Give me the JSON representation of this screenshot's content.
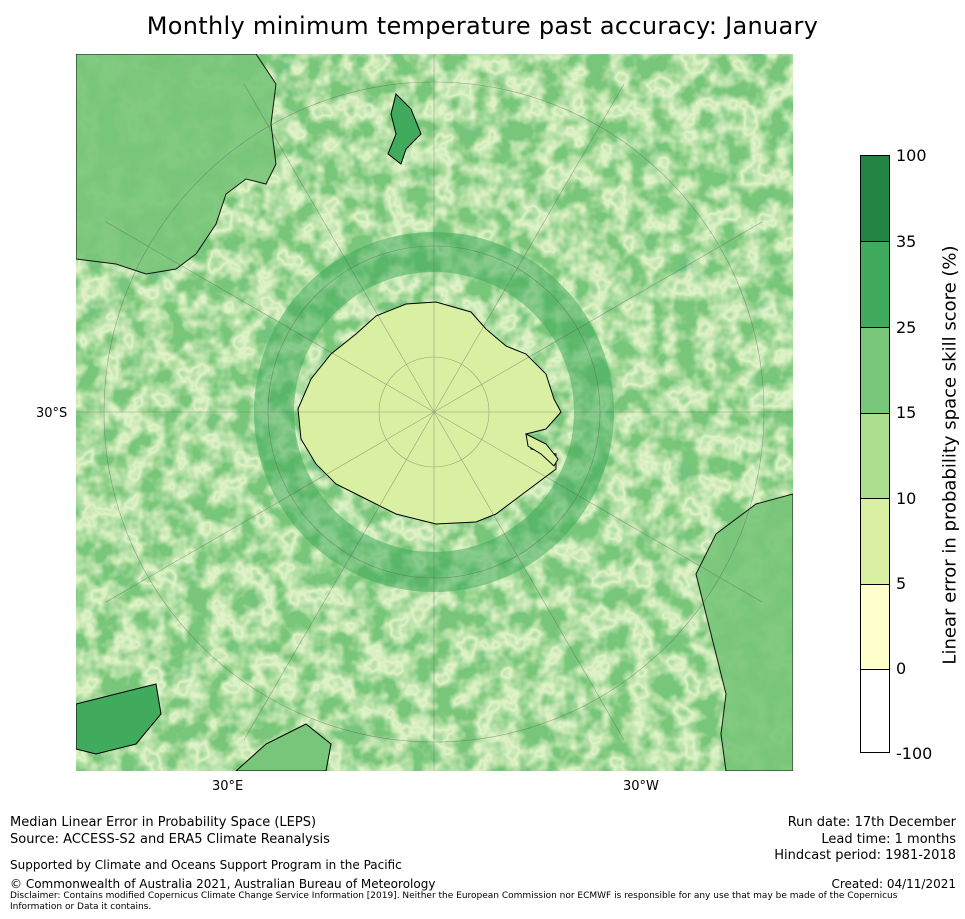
{
  "title": "Monthly minimum temperature past accuracy: January",
  "map": {
    "projection": "south-polar-stereographic",
    "labels": {
      "lat": "30°S",
      "lon_east": "30°E",
      "lon_west": "30°W"
    }
  },
  "colorbar": {
    "title": "Linear error in probability space skill score (%)",
    "ticks": [
      "100",
      "35",
      "25",
      "15",
      "10",
      "5",
      "0",
      "-100"
    ],
    "bins": [
      {
        "from": "35",
        "to": "100",
        "color": "#238443"
      },
      {
        "from": "25",
        "to": "35",
        "color": "#41ab5d"
      },
      {
        "from": "15",
        "to": "25",
        "color": "#78c679"
      },
      {
        "from": "10",
        "to": "15",
        "color": "#addd8e"
      },
      {
        "from": "5",
        "to": "10",
        "color": "#d9f0a3"
      },
      {
        "from": "0",
        "to": "5",
        "color": "#ffffcc"
      },
      {
        "from": "-100",
        "to": "0",
        "color": "#ffffff"
      }
    ]
  },
  "footer": {
    "left_line1": "Median Linear Error in Probability Space (LEPS)",
    "left_line2": "Source: ACCESS-S2 and ERA5 Climate Reanalysis",
    "supported": "Supported by Climate and Oceans Support Program in the Pacific",
    "copyright": "© Commonwealth of Australia 2021, Australian Bureau of Meteorology",
    "disclaimer": "Disclaimer: Contains modified Copernicus Climate Change Service Information [2019]. Neither the European Commission nor ECMWF is responsible for any use that may be made of the Copernicus Information or Data it contains.",
    "run_date": "Run date: 17th December",
    "lead_time": "Lead time: 1 months",
    "hindcast": "Hindcast period: 1981-2018",
    "created": "Created: 04/11/2021"
  }
}
